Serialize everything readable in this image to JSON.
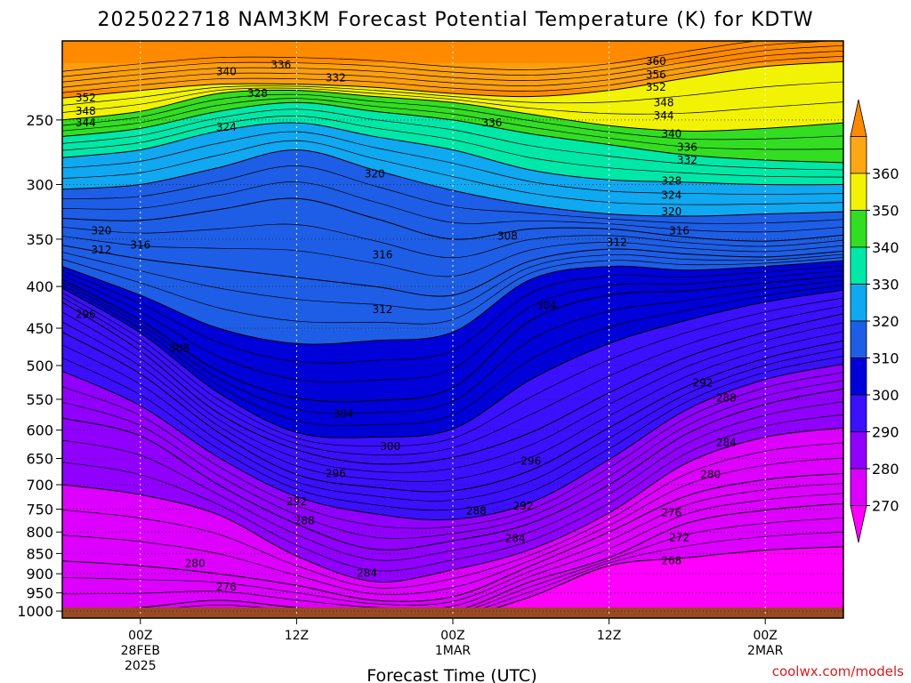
{
  "page": {
    "title": "2025022718 NAM3KM Forecast Potential Temperature (K) for KDTW",
    "credit": "coolwx.com/models"
  },
  "chart_data": {
    "type": "contour",
    "title": "2025022718 NAM3KM Forecast Potential Temperature (K) for KDTW",
    "xlabel": "Forecast Time (UTC)",
    "ylabel": "",
    "x_ticks": [
      {
        "label": "00Z",
        "sub": [
          "28FEB",
          "2025"
        ]
      },
      {
        "label": "12Z",
        "sub": []
      },
      {
        "label": "00Z",
        "sub": [
          "1MAR"
        ]
      },
      {
        "label": "12Z",
        "sub": []
      },
      {
        "label": "00Z",
        "sub": [
          "2MAR"
        ]
      }
    ],
    "y_ticks": [
      "250",
      "300",
      "350",
      "400",
      "450",
      "500",
      "550",
      "600",
      "650",
      "700",
      "750",
      "800",
      "850",
      "900",
      "950",
      "1000"
    ],
    "y_tick_values": [
      250,
      300,
      350,
      400,
      450,
      500,
      550,
      600,
      650,
      700,
      750,
      800,
      850,
      900,
      950,
      1000
    ],
    "ylim": [
      1020,
      200
    ],
    "y_scale": "log-pressure",
    "colorbar": {
      "levels": [
        270,
        280,
        290,
        300,
        310,
        320,
        330,
        340,
        350,
        360
      ],
      "labels": [
        "270",
        "280",
        "290",
        "300",
        "310",
        "320",
        "330",
        "340",
        "350",
        "360"
      ],
      "colors": [
        "#ff00ff",
        "#dd00ff",
        "#9100ff",
        "#3a10ff",
        "#0000d8",
        "#1e5ee6",
        "#10a8f0",
        "#00e8a8",
        "#33dd22",
        "#f2f205",
        "#fba814",
        "#ff8a00"
      ]
    },
    "contour_interval": 4,
    "isentropes": [
      {
        "theta": 352,
        "pressure": [
          235,
          230,
          226,
          226,
          228,
          232,
          234,
          230,
          222,
          215,
          212
        ]
      },
      {
        "theta": 344,
        "pressure": [
          250,
          244,
          232,
          230,
          234,
          238,
          246,
          254,
          258,
          256,
          252
        ]
      },
      {
        "theta": 336,
        "pressure": [
          262,
          256,
          244,
          238,
          244,
          250,
          260,
          268,
          276,
          280,
          282
        ]
      },
      {
        "theta": 328,
        "pressure": [
          278,
          272,
          258,
          252,
          262,
          272,
          288,
          296,
          298,
          300,
          300
        ]
      },
      {
        "theta": 320,
        "pressure": [
          304,
          300,
          286,
          272,
          288,
          305,
          318,
          326,
          328,
          326,
          324
        ]
      },
      {
        "theta": 316,
        "pressure": [
          330,
          332,
          322,
          312,
          330,
          350,
          340,
          340,
          348,
          352,
          346
        ]
      },
      {
        "theta": 312,
        "pressure": [
          356,
          370,
          380,
          390,
          400,
          410,
          372,
          360,
          365,
          368,
          362
        ]
      },
      {
        "theta": 308,
        "pressure": [
          378,
          410,
          450,
          470,
          466,
          455,
          392,
          378,
          382,
          378,
          372
        ]
      },
      {
        "theta": 304,
        "pressure": [
          392,
          440,
          508,
          548,
          552,
          532,
          440,
          410,
          405,
          396,
          388
        ]
      },
      {
        "theta": 300,
        "pressure": [
          402,
          456,
          540,
          604,
          612,
          598,
          520,
          470,
          440,
          418,
          404
        ]
      },
      {
        "theta": 296,
        "pressure": [
          418,
          480,
          572,
          634,
          660,
          648,
          604,
          540,
          488,
          455,
          432
        ]
      },
      {
        "theta": 292,
        "pressure": [
          455,
          512,
          604,
          680,
          705,
          712,
          672,
          596,
          530,
          490,
          466
        ]
      },
      {
        "theta": 288,
        "pressure": [
          508,
          560,
          648,
          724,
          760,
          772,
          736,
          652,
          566,
          520,
          498
        ]
      },
      {
        "theta": 284,
        "pressure": [
          580,
          610,
          700,
          782,
          840,
          820,
          780,
          700,
          606,
          558,
          534
        ]
      },
      {
        "theta": 280,
        "pressure": [
          700,
          720,
          762,
          856,
          920,
          890,
          840,
          758,
          658,
          612,
          596
        ]
      },
      {
        "theta": 276,
        "pressure": [
          868,
          880,
          900,
          930,
          970,
          960,
          880,
          800,
          722,
          690,
          678
        ]
      },
      {
        "theta": 272,
        "pressure": [
          1000,
          990,
          970,
          990,
          1000,
          1000,
          920,
          860,
          780,
          752,
          738
        ]
      },
      {
        "theta": 268,
        "pressure": [
          1020,
          1020,
          1010,
          1015,
          1020,
          1020,
          960,
          880,
          860,
          842,
          834
        ]
      }
    ],
    "contour_labels": [
      {
        "text": "360",
        "t": 0.76,
        "p": 212
      },
      {
        "text": "356",
        "t": 0.76,
        "p": 220
      },
      {
        "text": "352",
        "t": 0.76,
        "p": 228
      },
      {
        "text": "352",
        "t": 0.03,
        "p": 235
      },
      {
        "text": "348",
        "t": 0.03,
        "p": 244
      },
      {
        "text": "344",
        "t": 0.03,
        "p": 252
      },
      {
        "text": "340",
        "t": 0.21,
        "p": 218
      },
      {
        "text": "336",
        "t": 0.28,
        "p": 214
      },
      {
        "text": "332",
        "t": 0.35,
        "p": 222
      },
      {
        "text": "328",
        "t": 0.25,
        "p": 232
      },
      {
        "text": "324",
        "t": 0.21,
        "p": 255
      },
      {
        "text": "348",
        "t": 0.77,
        "p": 238
      },
      {
        "text": "344",
        "t": 0.77,
        "p": 247
      },
      {
        "text": "340",
        "t": 0.78,
        "p": 260
      },
      {
        "text": "336",
        "t": 0.55,
        "p": 252
      },
      {
        "text": "336",
        "t": 0.8,
        "p": 270
      },
      {
        "text": "332",
        "t": 0.8,
        "p": 280
      },
      {
        "text": "328",
        "t": 0.78,
        "p": 297
      },
      {
        "text": "324",
        "t": 0.78,
        "p": 309
      },
      {
        "text": "320",
        "t": 0.78,
        "p": 324
      },
      {
        "text": "316",
        "t": 0.79,
        "p": 342
      },
      {
        "text": "320",
        "t": 0.4,
        "p": 291
      },
      {
        "text": "320",
        "t": 0.05,
        "p": 342
      },
      {
        "text": "312",
        "t": 0.05,
        "p": 361
      },
      {
        "text": "316",
        "t": 0.1,
        "p": 356
      },
      {
        "text": "316",
        "t": 0.41,
        "p": 366
      },
      {
        "text": "312",
        "t": 0.41,
        "p": 427
      },
      {
        "text": "312",
        "t": 0.71,
        "p": 353
      },
      {
        "text": "308",
        "t": 0.57,
        "p": 347
      },
      {
        "text": "304",
        "t": 0.62,
        "p": 422
      },
      {
        "text": "308",
        "t": 0.15,
        "p": 476
      },
      {
        "text": "304",
        "t": 0.36,
        "p": 573
      },
      {
        "text": "300",
        "t": 0.42,
        "p": 628
      },
      {
        "text": "296",
        "t": 0.03,
        "p": 433
      },
      {
        "text": "296",
        "t": 0.35,
        "p": 678
      },
      {
        "text": "296",
        "t": 0.6,
        "p": 655
      },
      {
        "text": "292",
        "t": 0.3,
        "p": 734
      },
      {
        "text": "292",
        "t": 0.59,
        "p": 743
      },
      {
        "text": "292",
        "t": 0.82,
        "p": 525
      },
      {
        "text": "288",
        "t": 0.31,
        "p": 775
      },
      {
        "text": "288",
        "t": 0.53,
        "p": 754
      },
      {
        "text": "288",
        "t": 0.85,
        "p": 548
      },
      {
        "text": "284",
        "t": 0.39,
        "p": 898
      },
      {
        "text": "284",
        "t": 0.58,
        "p": 815
      },
      {
        "text": "284",
        "t": 0.85,
        "p": 621
      },
      {
        "text": "280",
        "t": 0.17,
        "p": 874
      },
      {
        "text": "280",
        "t": 0.83,
        "p": 680
      },
      {
        "text": "276",
        "t": 0.21,
        "p": 934
      },
      {
        "text": "276",
        "t": 0.78,
        "p": 758
      },
      {
        "text": "272",
        "t": 0.79,
        "p": 813
      },
      {
        "text": "268",
        "t": 0.78,
        "p": 868
      }
    ]
  }
}
